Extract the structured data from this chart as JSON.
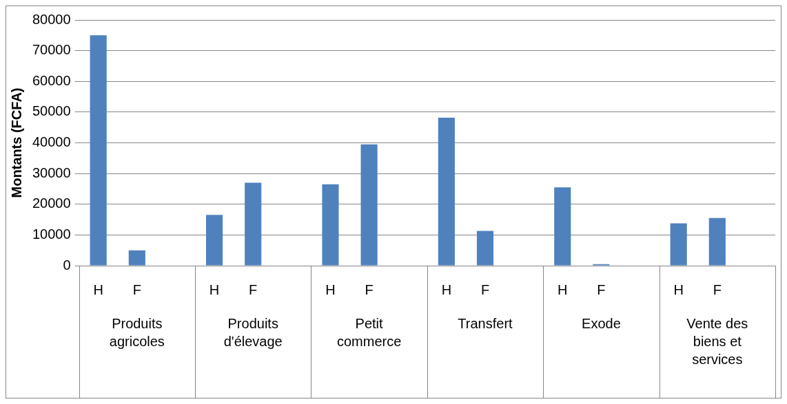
{
  "chart_data": {
    "type": "bar",
    "ylabel": "Montants (FCFA)",
    "categories": [
      "H",
      "F",
      null,
      "H",
      "F",
      null,
      "H",
      "F",
      null,
      "H",
      "F",
      null,
      "H",
      "F",
      null,
      "H",
      "F",
      null
    ],
    "values": [
      75000,
      5000,
      null,
      16500,
      27000,
      null,
      26500,
      39500,
      null,
      48200,
      11300,
      null,
      25500,
      500,
      null,
      13800,
      15500,
      null
    ],
    "color": "#4f81bd",
    "ylim": [
      0,
      80000
    ],
    "yticks": [
      0,
      10000,
      20000,
      30000,
      40000,
      50000,
      60000,
      70000,
      80000
    ],
    "grid": "y",
    "legend": false,
    "annotations": [
      "Produits agricoles",
      "Produits d'élevage",
      "Petit commerce",
      "Transfert",
      "Exode",
      "Vente des biens et services"
    ]
  }
}
